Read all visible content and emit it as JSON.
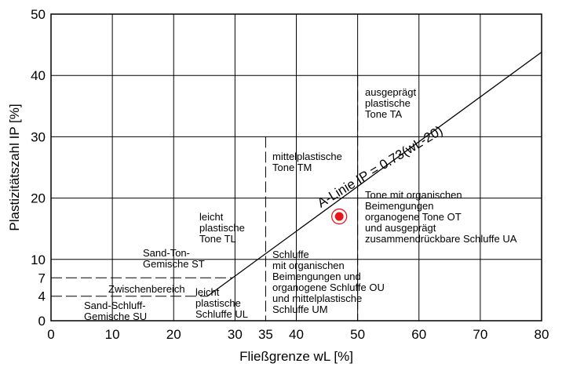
{
  "chart_data": {
    "type": "scatter",
    "title": "",
    "xlabel": "Fließgrenze wL [%]",
    "ylabel": "Plastizitätszahl IP [%]",
    "xlim": [
      0,
      80
    ],
    "ylim": [
      0,
      50
    ],
    "grid": true,
    "x_ticks": [
      "0",
      "10",
      "20",
      "30",
      "35",
      "40",
      "50",
      "60",
      "70",
      "80"
    ],
    "x_tick_values": [
      0,
      10,
      20,
      30,
      35,
      40,
      50,
      60,
      70,
      80
    ],
    "y_ticks": [
      "0",
      "4",
      "7",
      "10",
      "20",
      "30",
      "40",
      "50"
    ],
    "y_tick_values": [
      0,
      4,
      7,
      10,
      20,
      30,
      40,
      50
    ],
    "a_line": {
      "label": "A-Linie IP = 0.73(wL-20)",
      "slope": 0.73,
      "offset": 20,
      "start": [
        25.5,
        4
      ],
      "end": [
        80,
        43.8
      ]
    },
    "boundaries": {
      "wl_35_dashed": 35,
      "wl_50_dashed": 50,
      "ip_7_dashed": 7,
      "ip_4_dashed": 4
    },
    "point": {
      "x": 47,
      "y": 17,
      "color": "#e8151b"
    },
    "regions": [
      {
        "lines": [
          "ausgeprägt",
          "plastische",
          "Tone TA"
        ]
      },
      {
        "lines": [
          "mittelplastische",
          "Tone TM"
        ]
      },
      {
        "lines": [
          "Tone mit organischen",
          "Beimengungen",
          "organogene Tone OT",
          "und ausgeprägt",
          "zusammendrückbare Schluffe UA"
        ]
      },
      {
        "lines": [
          "leicht",
          "plastische",
          "Tone TL"
        ]
      },
      {
        "lines": [
          "Sand-Ton-",
          "Gemische ST"
        ]
      },
      {
        "lines": [
          "Schluffe",
          "mit organischen",
          "Beimengungen und",
          "organogene Schluffe OU",
          "und mittelplastische",
          "Schluffe UM"
        ]
      },
      {
        "lines": [
          "Zwischenbereich"
        ]
      },
      {
        "lines": [
          "leicht",
          "plastische",
          "Schluffe UL"
        ]
      },
      {
        "lines": [
          "Sand-Schluff-",
          "Gemische SU"
        ]
      }
    ]
  }
}
